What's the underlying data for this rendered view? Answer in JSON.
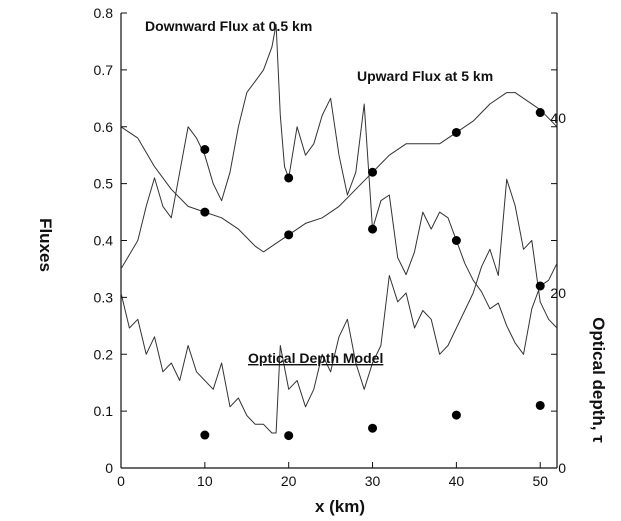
{
  "chart_data": {
    "type": "line",
    "xlabel": "x (km)",
    "ylabel": "Fluxes",
    "y2label": "Optical depth, τ",
    "xlim": [
      0,
      52
    ],
    "ylim": [
      0,
      0.8
    ],
    "y2lim": [
      0,
      52
    ],
    "x_ticks": [
      "0",
      "10",
      "20",
      "30",
      "40",
      "50"
    ],
    "x_tick_values": [
      0,
      10,
      20,
      30,
      40,
      50
    ],
    "y_ticks": [
      "0",
      "0.1",
      "0.2",
      "0.3",
      "0.4",
      "0.5",
      "0.6",
      "0.7",
      "0.8"
    ],
    "y_tick_values": [
      0,
      0.1,
      0.2,
      0.3,
      0.4,
      0.5,
      0.6,
      0.7,
      0.8
    ],
    "y2_ticks": [
      "0",
      "20",
      "40"
    ],
    "y2_tick_values": [
      0,
      20,
      40
    ],
    "annotations": [
      "Downward Flux at 0.5 km",
      "Upward Flux at 5 km",
      "Optical Depth Model"
    ],
    "series": [
      {
        "axis": "left",
        "x": [
          0,
          2,
          3,
          4,
          5,
          6,
          7,
          8,
          9,
          10,
          11,
          12,
          13,
          14,
          15,
          16,
          17,
          18,
          18.5,
          19,
          19.5,
          20,
          21,
          22,
          23,
          24,
          25,
          26,
          27,
          28,
          29,
          30,
          31,
          32,
          33,
          34,
          35,
          36,
          37,
          38,
          39,
          40,
          41,
          42,
          43,
          44,
          45,
          46,
          47,
          48,
          49,
          50,
          51,
          52
        ],
        "y": [
          0.35,
          0.4,
          0.46,
          0.51,
          0.46,
          0.44,
          0.52,
          0.6,
          0.58,
          0.55,
          0.5,
          0.47,
          0.52,
          0.6,
          0.66,
          0.68,
          0.7,
          0.74,
          0.78,
          0.62,
          0.53,
          0.51,
          0.6,
          0.55,
          0.57,
          0.62,
          0.65,
          0.55,
          0.48,
          0.52,
          0.64,
          0.42,
          0.47,
          0.48,
          0.37,
          0.34,
          0.38,
          0.45,
          0.42,
          0.45,
          0.44,
          0.4,
          0.36,
          0.33,
          0.31,
          0.28,
          0.29,
          0.25,
          0.22,
          0.2,
          0.28,
          0.32,
          0.33,
          0.36
        ]
      },
      {
        "axis": "left",
        "x": [
          0,
          2,
          4,
          6,
          8,
          10,
          12,
          14,
          16,
          17,
          18,
          20,
          22,
          24,
          26,
          28,
          30,
          32,
          34,
          36,
          38,
          40,
          42,
          44,
          46,
          47,
          48,
          50,
          52
        ],
        "y": [
          0.6,
          0.58,
          0.53,
          0.49,
          0.46,
          0.45,
          0.44,
          0.42,
          0.39,
          0.38,
          0.39,
          0.41,
          0.43,
          0.44,
          0.46,
          0.49,
          0.52,
          0.55,
          0.57,
          0.57,
          0.57,
          0.59,
          0.61,
          0.64,
          0.66,
          0.66,
          0.65,
          0.63,
          0.6
        ]
      },
      {
        "axis": "right",
        "x": [
          0,
          1,
          2,
          3,
          4,
          5,
          6,
          7,
          8,
          9,
          10,
          11,
          12,
          13,
          14,
          15,
          16,
          17,
          18,
          18.5,
          19,
          20,
          21,
          22,
          23,
          24,
          25,
          26,
          27,
          28,
          29,
          30,
          31,
          32,
          33,
          34,
          35,
          36,
          37,
          38,
          39,
          40,
          41,
          42,
          43,
          44,
          45,
          46,
          47,
          48,
          49,
          50,
          51,
          52
        ],
        "y": [
          20,
          16,
          17,
          13,
          15,
          11,
          12,
          10,
          14,
          11,
          10,
          9,
          12,
          7,
          8,
          6,
          5,
          5,
          4,
          4,
          14,
          9,
          10,
          7,
          9,
          13,
          11,
          15,
          17,
          12,
          9,
          12,
          14,
          22,
          19,
          20,
          16,
          18,
          17,
          13,
          14,
          16,
          18,
          20,
          23,
          25,
          22,
          33,
          30,
          25,
          26,
          19,
          17,
          16
        ]
      }
    ],
    "markers": [
      {
        "x": 10,
        "y": 0.56
      },
      {
        "x": 20,
        "y": 0.51
      },
      {
        "x": 30,
        "y": 0.42
      },
      {
        "x": 40,
        "y": 0.4
      },
      {
        "x": 50,
        "y": 0.32
      },
      {
        "x": 10,
        "y": 0.45
      },
      {
        "x": 20,
        "y": 0.41
      },
      {
        "x": 30,
        "y": 0.52
      },
      {
        "x": 40,
        "y": 0.59
      },
      {
        "x": 50,
        "y": 0.625
      },
      {
        "x": 10,
        "y": 0.058
      },
      {
        "x": 20,
        "y": 0.057
      },
      {
        "x": 30,
        "y": 0.07
      },
      {
        "x": 40,
        "y": 0.093
      },
      {
        "x": 50,
        "y": 0.11
      }
    ],
    "colors": {
      "line": "#333333",
      "marker": "#000000",
      "axis": "#111111"
    }
  }
}
